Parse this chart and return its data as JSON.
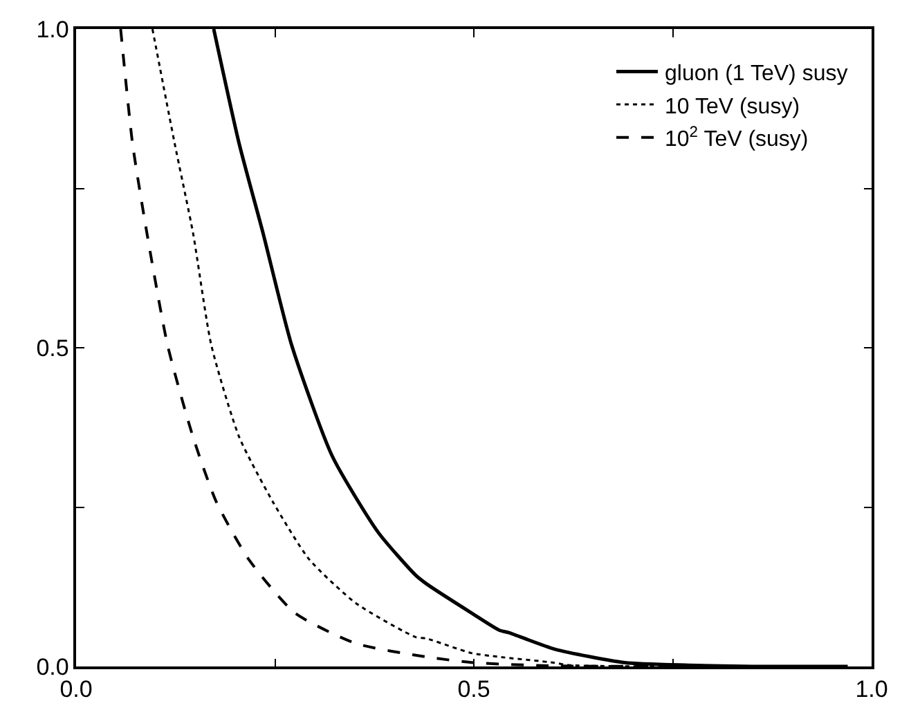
{
  "chart_data": {
    "type": "line",
    "xlim": [
      0.0,
      1.0
    ],
    "ylim": [
      0.0,
      1.0
    ],
    "xticks": [
      {
        "value": 0.0,
        "label": "0.0"
      },
      {
        "value": 0.25,
        "label": null
      },
      {
        "value": 0.5,
        "label": "0.5"
      },
      {
        "value": 0.75,
        "label": null
      },
      {
        "value": 1.0,
        "label": "1.0"
      }
    ],
    "yticks": [
      {
        "value": 0.0,
        "label": "0.0"
      },
      {
        "value": 0.25,
        "label": null
      },
      {
        "value": 0.5,
        "label": "0.5"
      },
      {
        "value": 0.75,
        "label": null
      },
      {
        "value": 1.0,
        "label": "1.0"
      }
    ],
    "legend": "top right",
    "marker": "none",
    "series": [
      {
        "name": "gluon (1 TeV) susy",
        "color": "#000000",
        "line_style": "solid",
        "x": [
          0.173,
          0.205,
          0.235,
          0.271,
          0.322,
          0.38,
          0.427,
          0.44,
          0.497,
          0.532,
          0.544,
          0.602,
          0.69,
          0.77,
          0.85,
          0.97
        ],
        "values": [
          1.0,
          0.82,
          0.68,
          0.504,
          0.33,
          0.21,
          0.143,
          0.13,
          0.084,
          0.057,
          0.053,
          0.027,
          0.006,
          0.002,
          0.0,
          0.0
        ]
      },
      {
        "name": "10 TeV (susy)",
        "color": "#000000",
        "line_style": "dotted",
        "x": [
          0.096,
          0.124,
          0.147,
          0.17,
          0.205,
          0.247,
          0.293,
          0.352,
          0.427,
          0.44,
          0.497,
          0.532,
          0.6,
          0.62,
          0.8
        ],
        "values": [
          1.0,
          0.82,
          0.68,
          0.504,
          0.36,
          0.259,
          0.168,
          0.099,
          0.046,
          0.044,
          0.021,
          0.015,
          0.006,
          0.002,
          0.0
        ]
      },
      {
        "name": "10$^{2}$ TeV (susy)",
        "color": "#000000",
        "line_style": "dashed",
        "x": [
          0.056,
          0.071,
          0.089,
          0.115,
          0.147,
          0.176,
          0.217,
          0.275,
          0.352,
          0.44,
          0.5,
          0.6,
          0.92
        ],
        "values": [
          1.0,
          0.82,
          0.68,
          0.504,
          0.36,
          0.259,
          0.168,
          0.084,
          0.036,
          0.015,
          0.006,
          0.001,
          0.0
        ]
      }
    ]
  }
}
